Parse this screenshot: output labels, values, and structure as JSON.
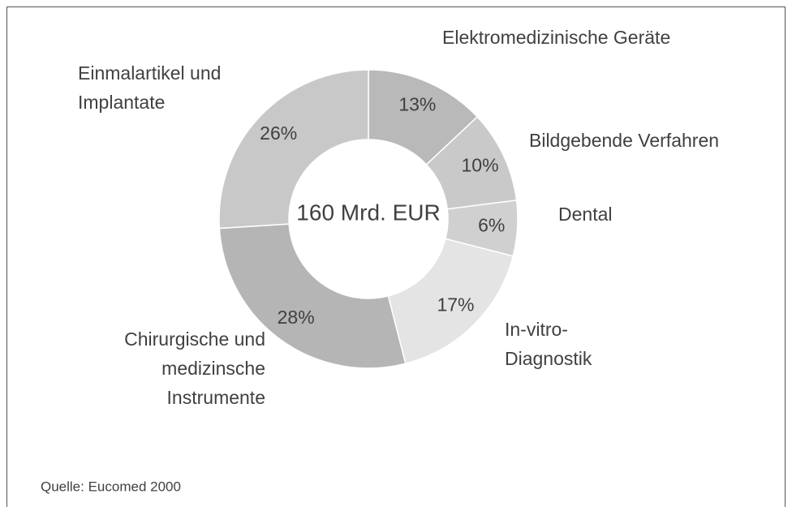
{
  "chart_data": {
    "type": "donut",
    "center_label": "160 Mrd. EUR",
    "categories": [
      "Elektromedizinische Geräte",
      "Bildgebende Verfahren",
      "Dental",
      "In-vitro-Diagnostik",
      "Chirurgische und medizinsche Instrumente",
      "Einmalartikel und Implantate"
    ],
    "values": [
      13,
      10,
      6,
      17,
      28,
      26
    ],
    "value_labels": [
      "13%",
      "10%",
      "6%",
      "17%",
      "28%",
      "26%"
    ],
    "colors": [
      "#b9b9b9",
      "#c9c9c9",
      "#d0d0d0",
      "#e4e4e4",
      "#b5b5b5",
      "#c8c8c8"
    ],
    "source": "Quelle: Eucomed 2000"
  }
}
